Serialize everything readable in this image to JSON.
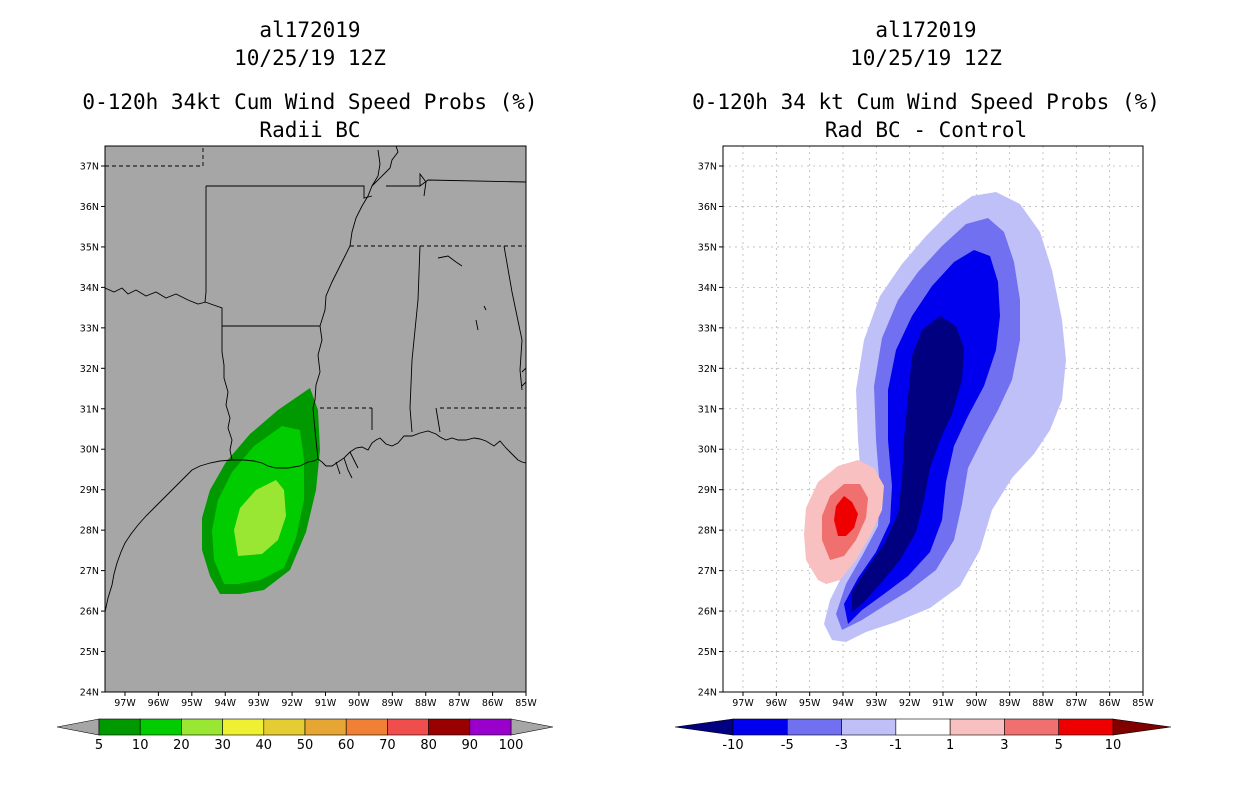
{
  "left_panel": {
    "title_line1": "al172019",
    "title_line2": "10/25/19 12Z",
    "title_line3": "0-120h 34kt Cum Wind Speed Probs (%)",
    "title_line4": "Radii BC",
    "background_color": "#a6a6a6",
    "colorbar": {
      "colors": [
        "#009900",
        "#00cc00",
        "#99e633",
        "#f0f033",
        "#e6cc33",
        "#e6a633",
        "#f08033",
        "#f04d4d",
        "#990000",
        "#9900cc"
      ],
      "labels": [
        "5",
        "10",
        "20",
        "30",
        "40",
        "50",
        "60",
        "70",
        "80",
        "90",
        "100"
      ]
    },
    "shading": [
      {
        "level": "5-10",
        "color": "#009900"
      },
      {
        "level": "10-20",
        "color": "#00cc00"
      },
      {
        "level": "20-30",
        "color": "#99e633"
      }
    ]
  },
  "right_panel": {
    "title_line1": "al172019",
    "title_line2": "10/25/19 12Z",
    "title_line3": "0-120h 34 kt Cum Wind Speed Probs (%)",
    "title_line4": "Rad BC - Control",
    "background_color": "#ffffff",
    "colorbar": {
      "colors": [
        "#000080",
        "#0000ee",
        "#7070f0",
        "#c0c0f8",
        "#ffffff",
        "#f8c0c0",
        "#f07070",
        "#ee0000",
        "#800000"
      ],
      "labels": [
        "-10",
        "-5",
        "-3",
        "-1",
        "1",
        "3",
        "5",
        "10"
      ]
    },
    "shading": [
      {
        "level": "-3 to -1",
        "color": "#c0c0f8"
      },
      {
        "level": "-5 to -3",
        "color": "#7070f0"
      },
      {
        "level": "-10 to -5",
        "color": "#0000ee"
      },
      {
        "level": "< -10",
        "color": "#000080"
      },
      {
        "level": "1 to 3",
        "color": "#f8c0c0"
      },
      {
        "level": "3 to 5",
        "color": "#f07070"
      },
      {
        "level": "5 to 10",
        "color": "#ee0000"
      }
    ]
  },
  "map": {
    "lat_labels": [
      "37N",
      "36N",
      "35N",
      "34N",
      "33N",
      "32N",
      "31N",
      "30N",
      "29N",
      "28N",
      "27N",
      "26N",
      "25N",
      "24N"
    ],
    "lon_labels": [
      "97W",
      "96W",
      "95W",
      "94W",
      "93W",
      "92W",
      "91W",
      "90W",
      "89W",
      "88W",
      "87W",
      "86W",
      "85W"
    ]
  }
}
